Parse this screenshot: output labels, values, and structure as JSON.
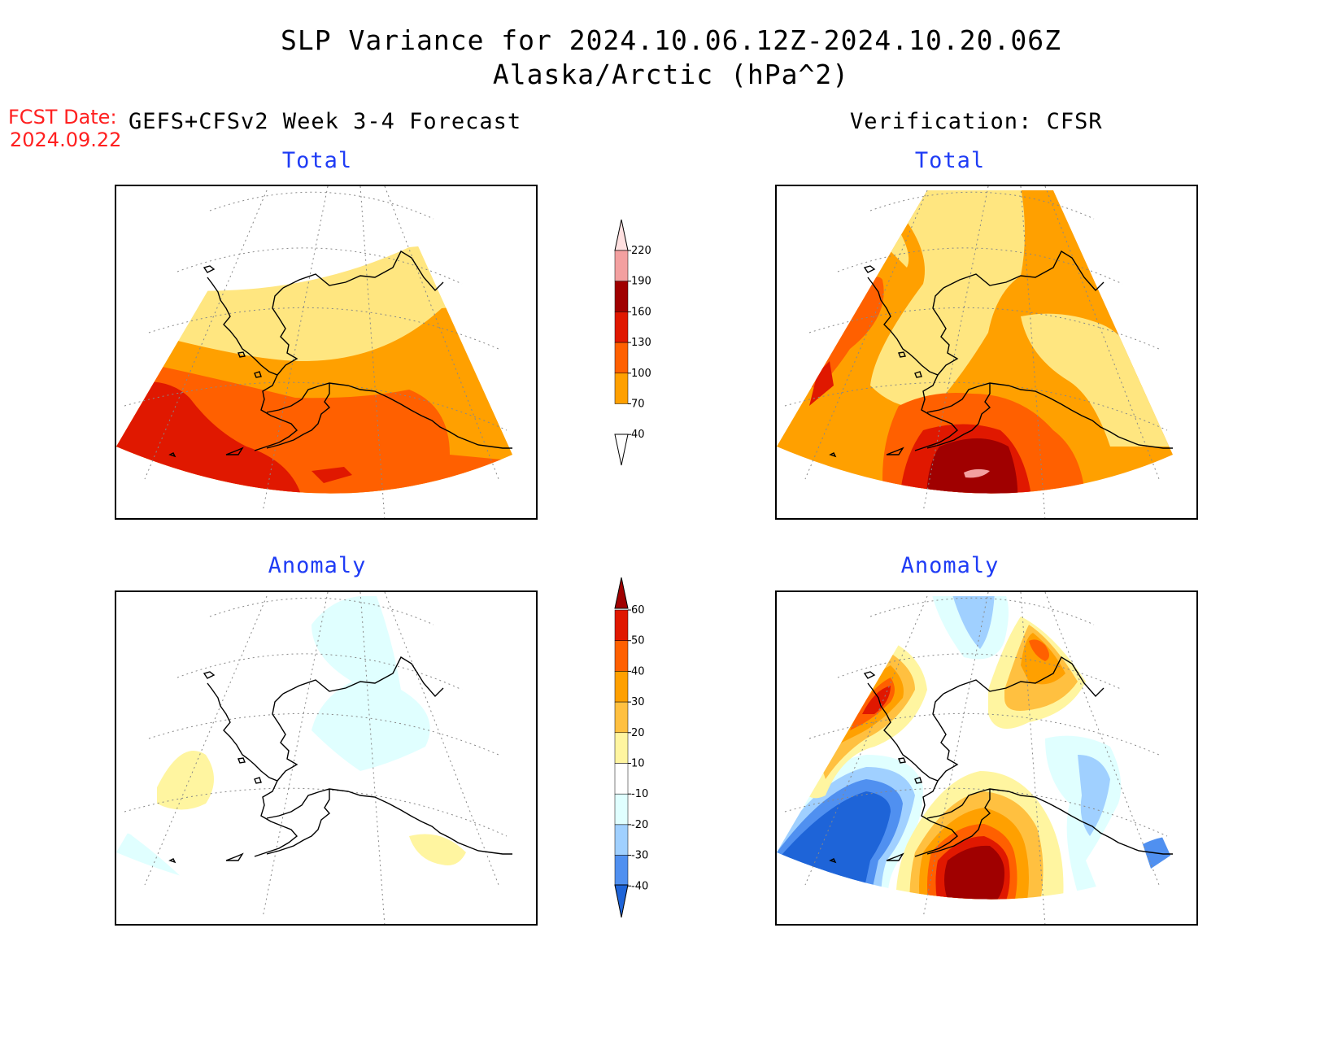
{
  "title": {
    "line1": "SLP Variance for 2024.10.06.12Z-2024.10.20.06Z",
    "line2": "Alaska/Arctic (hPa^2)"
  },
  "fcst": {
    "label": "FCST Date:",
    "date": "2024.09.22"
  },
  "headers": {
    "forecast": "GEFS+CFSv2 Week 3-4 Forecast",
    "verification": "Verification: CFSR"
  },
  "panels": {
    "forecast_total": "Total",
    "verification_total": "Total",
    "forecast_anomaly": "Anomaly",
    "verification_anomaly": "Anomaly"
  },
  "total_colorbar": {
    "labels": [
      "220",
      "190",
      "160",
      "130",
      "100",
      "70",
      "40"
    ],
    "colors": [
      "#ffe0e0",
      "#f3a0a0",
      "#a00000",
      "#e01800",
      "#ff6000",
      "#ffa000",
      "#ffe680"
    ]
  },
  "anomaly_colorbar": {
    "labels": [
      "60",
      "50",
      "40",
      "30",
      "20",
      "10",
      "-10",
      "-20",
      "-30",
      "-40"
    ],
    "colors": [
      "#a00000",
      "#e01800",
      "#ff6000",
      "#ffa000",
      "#ffc040",
      "#fff5a0",
      "#ffffff",
      "#e0ffff",
      "#a0d0ff",
      "#5090f0",
      "#1e64d8"
    ]
  }
}
